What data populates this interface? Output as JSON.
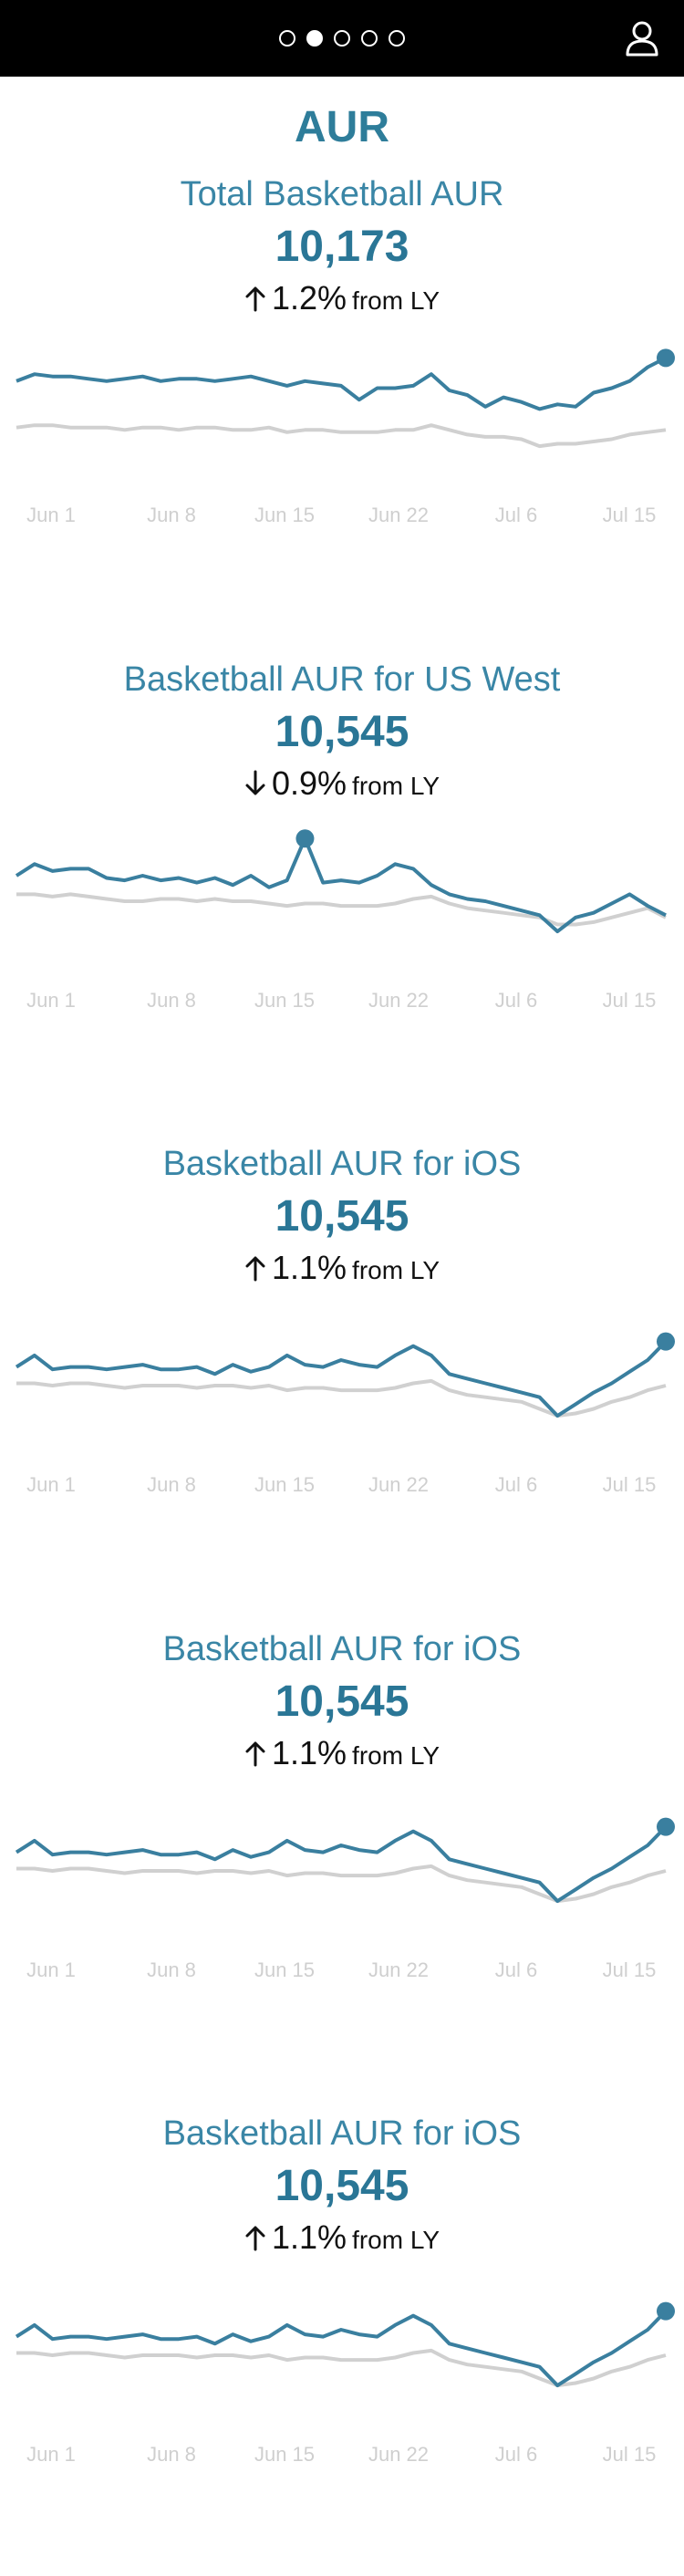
{
  "header": {
    "pager_dots": 5,
    "active_dot": 1,
    "icons": {
      "user": "user-icon"
    }
  },
  "page": {
    "title": "AUR"
  },
  "colors": {
    "accent": "#3a86a6",
    "primary_line": "#3a7f9f",
    "comparison_line": "#d0d0d0",
    "bar": "#000000"
  },
  "cards": [
    {
      "title": "Total Basketball AUR",
      "value": "10,173",
      "direction": "up",
      "change": "1.2%",
      "suffix": "from LY"
    },
    {
      "title": "Basketball AUR for US West",
      "value": "10,545",
      "direction": "down",
      "change": "0.9%",
      "suffix": "from LY"
    },
    {
      "title": "Basketball AUR for iOS",
      "value": "10,545",
      "direction": "up",
      "change": "1.1%",
      "suffix": "from LY"
    },
    {
      "title": "Basketball AUR for iOS",
      "value": "10,545",
      "direction": "up",
      "change": "1.1%",
      "suffix": "from LY"
    },
    {
      "title": "Basketball AUR for iOS",
      "value": "10,545",
      "direction": "up",
      "change": "1.1%",
      "suffix": "from LY"
    }
  ],
  "chart_data": [
    {
      "type": "line",
      "title": "Total Basketball AUR",
      "x_tick_labels": [
        "Jun 1",
        "Jun 8",
        "Jun 15",
        "Jun 22",
        "Jul 6",
        "Jul 15"
      ],
      "grid": false,
      "legend": "none",
      "series": [
        {
          "values": [
            62,
            65,
            64,
            64,
            63,
            62,
            63,
            64,
            62,
            63,
            63,
            62,
            63,
            64,
            62,
            60,
            62,
            61,
            60,
            54,
            59,
            59,
            60,
            65,
            58,
            56,
            51,
            55,
            53,
            50,
            52,
            51,
            57,
            59,
            62,
            68,
            72
          ]
        },
        {
          "values": [
            42,
            43,
            43,
            42,
            42,
            42,
            41,
            42,
            42,
            41,
            42,
            42,
            41,
            41,
            42,
            40,
            41,
            41,
            40,
            40,
            40,
            41,
            41,
            43,
            41,
            39,
            38,
            38,
            37,
            34,
            35,
            35,
            36,
            37,
            39,
            40,
            41
          ]
        }
      ],
      "highlight_point_index": 36
    },
    {
      "type": "line",
      "title": "Basketball AUR for US West",
      "x_tick_labels": [
        "Jun 1",
        "Jun 8",
        "Jun 15",
        "Jun 22",
        "Jul 6",
        "Jul 15"
      ],
      "grid": false,
      "legend": "none",
      "series": [
        {
          "values": [
            58,
            63,
            60,
            61,
            61,
            57,
            56,
            58,
            56,
            57,
            55,
            57,
            54,
            58,
            53,
            56,
            74,
            55,
            56,
            55,
            58,
            63,
            61,
            54,
            50,
            48,
            47,
            45,
            43,
            41,
            34,
            40,
            42,
            46,
            50,
            45,
            41
          ]
        },
        {
          "values": [
            50,
            50,
            49,
            50,
            49,
            48,
            47,
            47,
            48,
            48,
            47,
            48,
            47,
            47,
            46,
            45,
            46,
            46,
            45,
            45,
            45,
            46,
            48,
            49,
            46,
            44,
            43,
            42,
            41,
            40,
            37,
            37,
            38,
            40,
            42,
            44,
            40
          ]
        }
      ],
      "highlight_point_index": 16
    },
    {
      "type": "line",
      "title": "Basketball AUR for iOS",
      "x_tick_labels": [
        "Jun 1",
        "Jun 8",
        "Jun 15",
        "Jun 22",
        "Jul 6",
        "Jul 15"
      ],
      "grid": false,
      "legend": "none",
      "series": [
        {
          "values": [
            55,
            60,
            54,
            55,
            55,
            54,
            55,
            56,
            54,
            54,
            55,
            52,
            56,
            53,
            55,
            60,
            56,
            55,
            58,
            56,
            55,
            60,
            64,
            60,
            52,
            50,
            48,
            46,
            44,
            42,
            34,
            39,
            44,
            48,
            53,
            58,
            66
          ]
        },
        {
          "values": [
            48,
            48,
            47,
            48,
            48,
            47,
            46,
            47,
            47,
            47,
            46,
            47,
            47,
            46,
            47,
            45,
            46,
            46,
            45,
            45,
            45,
            46,
            48,
            49,
            45,
            43,
            42,
            41,
            40,
            37,
            34,
            35,
            37,
            40,
            42,
            45,
            47
          ]
        }
      ],
      "highlight_point_index": 36
    },
    {
      "type": "line",
      "title": "Basketball AUR for iOS",
      "x_tick_labels": [
        "Jun 1",
        "Jun 8",
        "Jun 15",
        "Jun 22",
        "Jul 6",
        "Jul 15"
      ],
      "grid": false,
      "legend": "none",
      "series": [
        {
          "values": [
            55,
            60,
            54,
            55,
            55,
            54,
            55,
            56,
            54,
            54,
            55,
            52,
            56,
            53,
            55,
            60,
            56,
            55,
            58,
            56,
            55,
            60,
            64,
            60,
            52,
            50,
            48,
            46,
            44,
            42,
            34,
            39,
            44,
            48,
            53,
            58,
            66
          ]
        },
        {
          "values": [
            48,
            48,
            47,
            48,
            48,
            47,
            46,
            47,
            47,
            47,
            46,
            47,
            47,
            46,
            47,
            45,
            46,
            46,
            45,
            45,
            45,
            46,
            48,
            49,
            45,
            43,
            42,
            41,
            40,
            37,
            34,
            35,
            37,
            40,
            42,
            45,
            47
          ]
        }
      ],
      "highlight_point_index": 36
    },
    {
      "type": "line",
      "title": "Basketball AUR for iOS",
      "x_tick_labels": [
        "Jun 1",
        "Jun 8",
        "Jun 15",
        "Jun 22",
        "Jul 6",
        "Jul 15"
      ],
      "grid": false,
      "legend": "none",
      "series": [
        {
          "values": [
            55,
            60,
            54,
            55,
            55,
            54,
            55,
            56,
            54,
            54,
            55,
            52,
            56,
            53,
            55,
            60,
            56,
            55,
            58,
            56,
            55,
            60,
            64,
            60,
            52,
            50,
            48,
            46,
            44,
            42,
            34,
            39,
            44,
            48,
            53,
            58,
            66
          ]
        },
        {
          "values": [
            48,
            48,
            47,
            48,
            48,
            47,
            46,
            47,
            47,
            47,
            46,
            47,
            47,
            46,
            47,
            45,
            46,
            46,
            45,
            45,
            45,
            46,
            48,
            49,
            45,
            43,
            42,
            41,
            40,
            37,
            34,
            35,
            37,
            40,
            42,
            45,
            47
          ]
        }
      ],
      "highlight_point_index": 36
    }
  ]
}
